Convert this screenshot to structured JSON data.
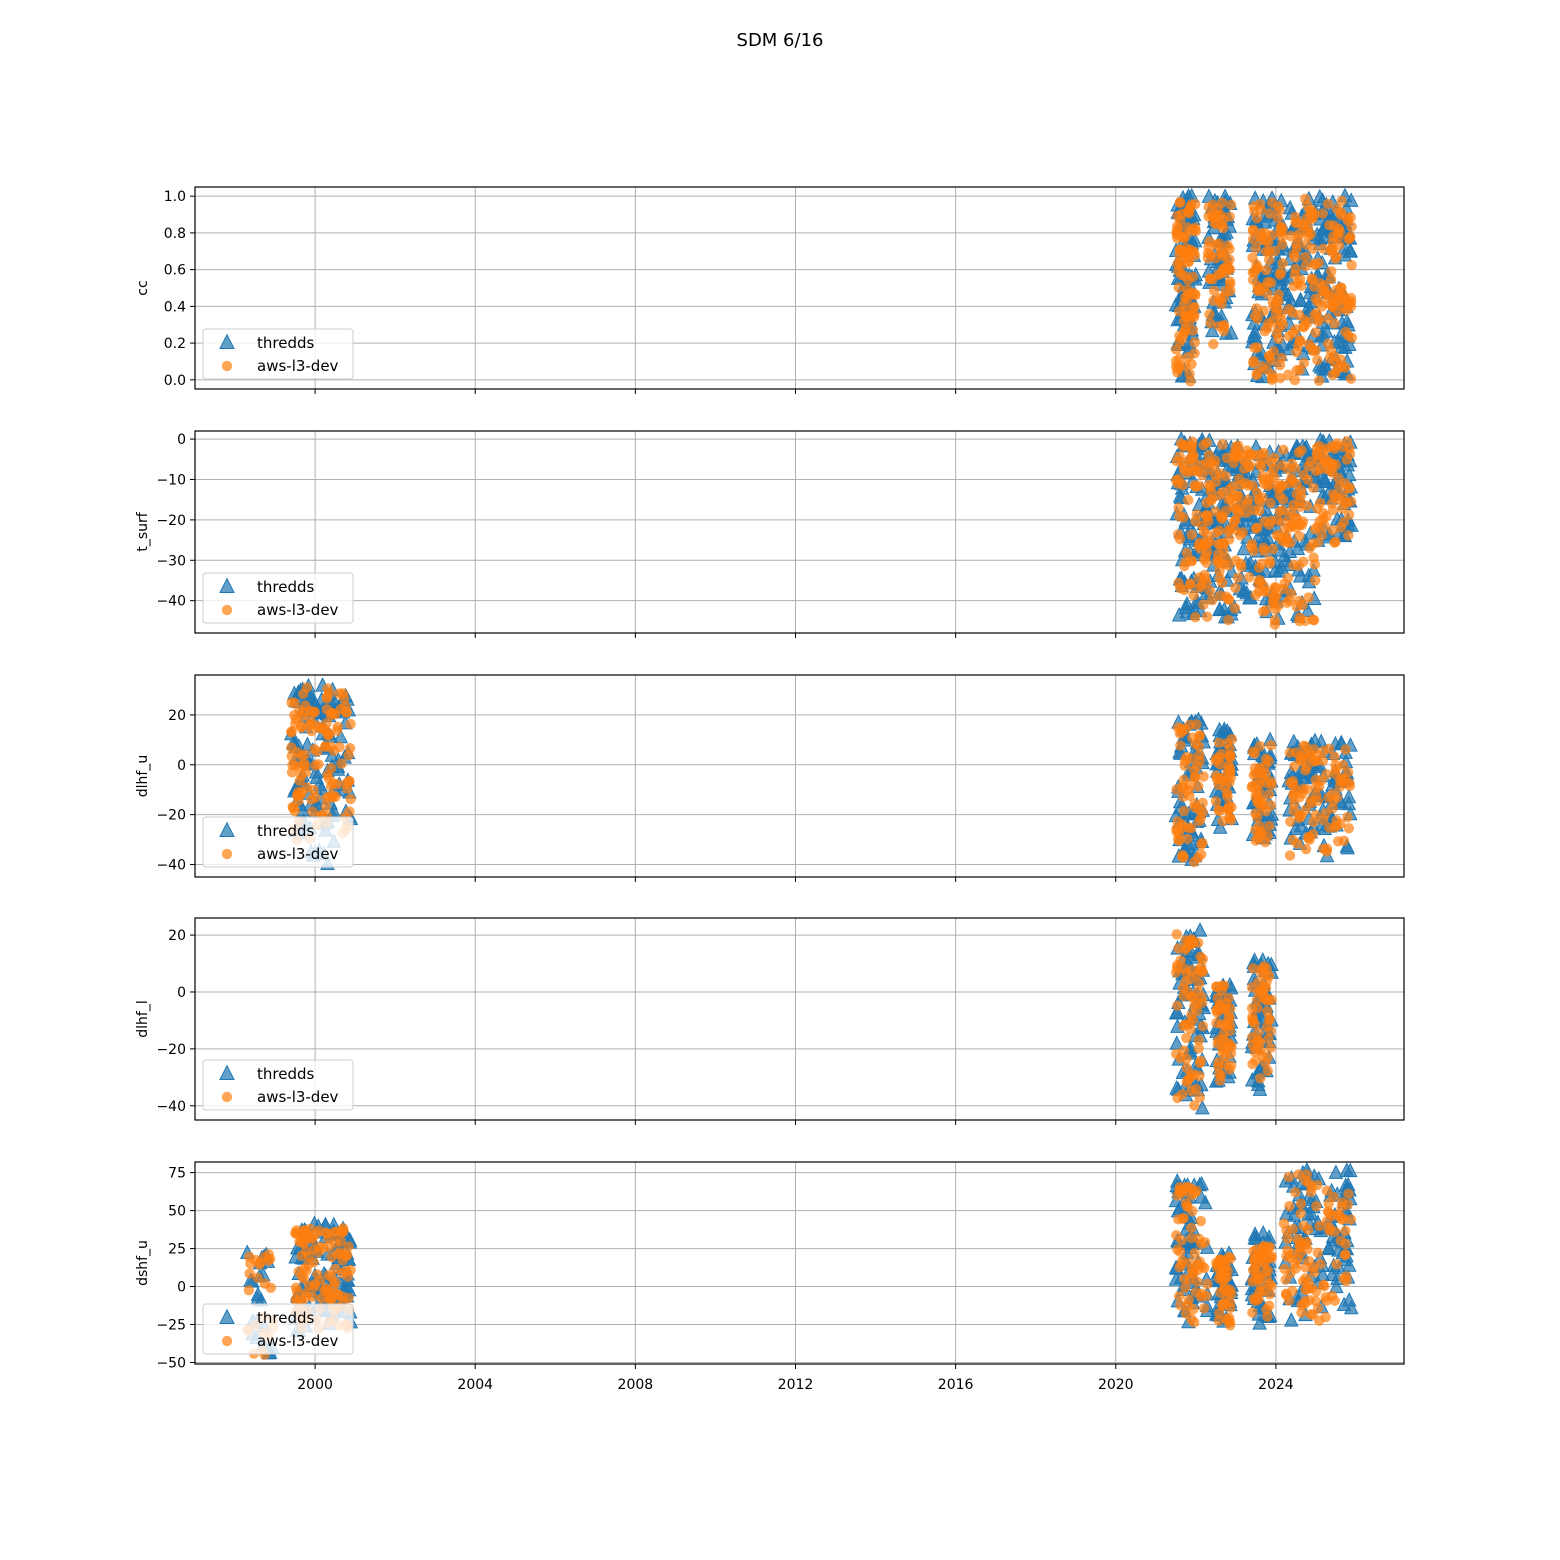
{
  "figure": {
    "title": "SDM 6/16"
  },
  "colors": {
    "thredds": "#1f77b4",
    "aws": "#ff7f0e",
    "grid": "#b0b0b0",
    "axes": "#000000"
  },
  "chart_data": [
    {
      "type": "scatter",
      "ylabel": "cc",
      "xlim": [
        1997.0,
        2027.2
      ],
      "ylim": [
        -0.05,
        1.05
      ],
      "yticks": [
        0.0,
        0.2,
        0.4,
        0.6,
        0.8,
        1.0
      ],
      "ytick_labels": [
        "0.0",
        "0.2",
        "0.4",
        "0.6",
        "0.8",
        "1.0"
      ],
      "show_xticklabels": false,
      "grid": true,
      "legend_loc": "lower left",
      "series": [
        {
          "name": "thredds",
          "marker": "triangle",
          "clusters": [
            {
              "x": [
                2021.5,
                2022.0
              ],
              "y": [
                0.0,
                1.0
              ],
              "n": 90
            },
            {
              "x": [
                2022.3,
                2022.9
              ],
              "y": [
                0.2,
                1.0
              ],
              "n": 60
            },
            {
              "x": [
                2023.4,
                2024.2
              ],
              "y": [
                0.0,
                1.0
              ],
              "n": 90
            },
            {
              "x": [
                2024.3,
                2025.9
              ],
              "y": [
                0.0,
                1.0
              ],
              "n": 150
            }
          ]
        },
        {
          "name": "aws-l3-dev",
          "marker": "circle",
          "clusters": [
            {
              "x": [
                2021.5,
                2022.0
              ],
              "y": [
                0.0,
                1.0
              ],
              "n": 90
            },
            {
              "x": [
                2022.3,
                2022.9
              ],
              "y": [
                0.2,
                1.0
              ],
              "n": 60
            },
            {
              "x": [
                2023.4,
                2024.2
              ],
              "y": [
                0.0,
                1.0
              ],
              "n": 90
            },
            {
              "x": [
                2024.3,
                2025.9
              ],
              "y": [
                0.0,
                1.0
              ],
              "n": 150
            }
          ]
        }
      ]
    },
    {
      "type": "scatter",
      "ylabel": "t_surf",
      "xlim": [
        1997.0,
        2027.2
      ],
      "ylim": [
        -48,
        2
      ],
      "yticks": [
        0,
        -10,
        -20,
        -30,
        -40
      ],
      "ytick_labels": [
        "0",
        "−10",
        "−20",
        "−30",
        "−40"
      ],
      "show_xticklabels": false,
      "grid": true,
      "legend_loc": "lower left",
      "series": [
        {
          "name": "thredds",
          "marker": "triangle",
          "clusters": [
            {
              "x": [
                2021.5,
                2022.3
              ],
              "y": [
                -44,
                0
              ],
              "n": 80
            },
            {
              "x": [
                2022.3,
                2023.1
              ],
              "y": [
                -46,
                0
              ],
              "n": 80
            },
            {
              "x": [
                2023.1,
                2024.0
              ],
              "y": [
                -46,
                -2
              ],
              "n": 80
            },
            {
              "x": [
                2024.0,
                2025.0
              ],
              "y": [
                -45,
                -2
              ],
              "n": 80
            },
            {
              "x": [
                2025.0,
                2025.9
              ],
              "y": [
                -26,
                0
              ],
              "n": 60
            }
          ]
        },
        {
          "name": "aws-l3-dev",
          "marker": "circle",
          "clusters": [
            {
              "x": [
                2021.5,
                2022.3
              ],
              "y": [
                -44,
                0
              ],
              "n": 80
            },
            {
              "x": [
                2022.3,
                2023.1
              ],
              "y": [
                -46,
                0
              ],
              "n": 80
            },
            {
              "x": [
                2023.1,
                2024.0
              ],
              "y": [
                -46,
                -2
              ],
              "n": 80
            },
            {
              "x": [
                2024.0,
                2025.0
              ],
              "y": [
                -45,
                -2
              ],
              "n": 80
            },
            {
              "x": [
                2025.0,
                2025.9
              ],
              "y": [
                -26,
                0
              ],
              "n": 60
            }
          ]
        }
      ]
    },
    {
      "type": "scatter",
      "ylabel": "dlhf_u",
      "xlim": [
        1997.0,
        2027.2
      ],
      "ylim": [
        -45,
        36
      ],
      "yticks": [
        20,
        0,
        -20,
        -40
      ],
      "ytick_labels": [
        "20",
        "0",
        "−20",
        "−40"
      ],
      "show_xticklabels": false,
      "grid": true,
      "legend_loc": "lower left",
      "series": [
        {
          "name": "thredds",
          "marker": "triangle",
          "clusters": [
            {
              "x": [
                1999.4,
                2000.9
              ],
              "y": [
                -41,
                32
              ],
              "n": 120
            },
            {
              "x": [
                2021.5,
                2022.2
              ],
              "y": [
                -42,
                18
              ],
              "n": 60
            },
            {
              "x": [
                2022.5,
                2022.9
              ],
              "y": [
                -26,
                14
              ],
              "n": 40
            },
            {
              "x": [
                2023.4,
                2023.9
              ],
              "y": [
                -32,
                10
              ],
              "n": 45
            },
            {
              "x": [
                2024.3,
                2025.9
              ],
              "y": [
                -37,
                10
              ],
              "n": 90
            }
          ]
        },
        {
          "name": "aws-l3-dev",
          "marker": "circle",
          "clusters": [
            {
              "x": [
                1999.4,
                2000.9
              ],
              "y": [
                -30,
                32
              ],
              "n": 120
            },
            {
              "x": [
                2021.5,
                2022.2
              ],
              "y": [
                -40,
                17
              ],
              "n": 60
            },
            {
              "x": [
                2022.5,
                2022.9
              ],
              "y": [
                -25,
                13
              ],
              "n": 40
            },
            {
              "x": [
                2023.4,
                2023.9
              ],
              "y": [
                -31,
                9
              ],
              "n": 45
            },
            {
              "x": [
                2024.3,
                2025.9
              ],
              "y": [
                -36,
                9
              ],
              "n": 90
            }
          ]
        }
      ]
    },
    {
      "type": "scatter",
      "ylabel": "dlhf_l",
      "xlim": [
        1997.0,
        2027.2
      ],
      "ylim": [
        -45,
        26
      ],
      "yticks": [
        20,
        0,
        -20,
        -40
      ],
      "ytick_labels": [
        "20",
        "0",
        "−20",
        "−40"
      ],
      "show_xticklabels": false,
      "grid": true,
      "legend_loc": "lower left",
      "series": [
        {
          "name": "thredds",
          "marker": "triangle",
          "clusters": [
            {
              "x": [
                2021.5,
                2022.2
              ],
              "y": [
                -42,
                22
              ],
              "n": 70
            },
            {
              "x": [
                2022.5,
                2022.9
              ],
              "y": [
                -32,
                4
              ],
              "n": 45
            },
            {
              "x": [
                2023.4,
                2023.9
              ],
              "y": [
                -35,
                11
              ],
              "n": 50
            }
          ]
        },
        {
          "name": "aws-l3-dev",
          "marker": "circle",
          "clusters": [
            {
              "x": [
                2021.5,
                2022.2
              ],
              "y": [
                -40,
                21
              ],
              "n": 70
            },
            {
              "x": [
                2022.5,
                2022.9
              ],
              "y": [
                -31,
                3
              ],
              "n": 45
            },
            {
              "x": [
                2023.4,
                2023.9
              ],
              "y": [
                -34,
                10
              ],
              "n": 50
            }
          ]
        }
      ]
    },
    {
      "type": "scatter",
      "ylabel": "dshf_u",
      "xlim": [
        1997.0,
        2027.2
      ],
      "ylim": [
        -51,
        82
      ],
      "yticks": [
        75,
        50,
        25,
        0,
        -25,
        -50
      ],
      "ytick_labels": [
        "75",
        "50",
        "25",
        "0",
        "−25",
        "−50"
      ],
      "xticks": [
        2000,
        2004,
        2008,
        2012,
        2016,
        2020,
        2024
      ],
      "xtick_labels": [
        "2000",
        "2004",
        "2008",
        "2012",
        "2016",
        "2020",
        "2024"
      ],
      "show_xticklabels": true,
      "grid": true,
      "legend_loc": "lower left",
      "series": [
        {
          "name": "thredds",
          "marker": "triangle",
          "clusters": [
            {
              "x": [
                1998.3,
                1999.0
              ],
              "y": [
                -48,
                25
              ],
              "n": 25
            },
            {
              "x": [
                1999.5,
                2000.9
              ],
              "y": [
                -30,
                41
              ],
              "n": 110
            },
            {
              "x": [
                2021.5,
                2022.3
              ],
              "y": [
                -25,
                69
              ],
              "n": 60
            },
            {
              "x": [
                2022.5,
                2022.9
              ],
              "y": [
                -27,
                22
              ],
              "n": 40
            },
            {
              "x": [
                2023.4,
                2023.9
              ],
              "y": [
                -27,
                35
              ],
              "n": 45
            },
            {
              "x": [
                2024.2,
                2025.9
              ],
              "y": [
                -24,
                77
              ],
              "n": 100
            }
          ]
        },
        {
          "name": "aws-l3-dev",
          "marker": "circle",
          "clusters": [
            {
              "x": [
                1998.3,
                1999.0
              ],
              "y": [
                -45,
                24
              ],
              "n": 25
            },
            {
              "x": [
                1999.5,
                2000.9
              ],
              "y": [
                -28,
                40
              ],
              "n": 110
            },
            {
              "x": [
                2021.5,
                2022.3
              ],
              "y": [
                -24,
                68
              ],
              "n": 60
            },
            {
              "x": [
                2022.5,
                2022.9
              ],
              "y": [
                -26,
                21
              ],
              "n": 40
            },
            {
              "x": [
                2023.4,
                2023.9
              ],
              "y": [
                -26,
                34
              ],
              "n": 45
            },
            {
              "x": [
                2024.2,
                2025.9
              ],
              "y": [
                -23,
                76
              ],
              "n": 100
            }
          ]
        }
      ]
    }
  ]
}
